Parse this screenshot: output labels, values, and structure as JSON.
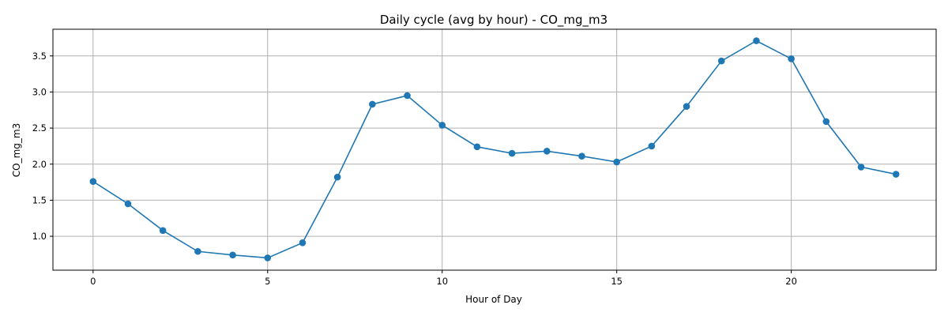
{
  "chart_data": {
    "type": "line",
    "title": "Daily cycle (avg by hour) - CO_mg_m3",
    "xlabel": "Hour of Day",
    "ylabel": "CO_mg_m3",
    "xlim": [
      -1.15,
      24.15
    ],
    "ylim": [
      0.53,
      3.87
    ],
    "xticks": [
      0,
      5,
      10,
      15,
      20
    ],
    "yticks": [
      1.0,
      1.5,
      2.0,
      2.5,
      3.0,
      3.5
    ],
    "grid": true,
    "color": "#1f77b4",
    "marker": "circle",
    "series": [
      {
        "x": [
          0,
          1,
          2,
          3,
          4,
          5,
          6,
          7,
          8,
          9,
          10,
          11,
          12,
          13,
          14,
          15,
          16,
          17,
          18,
          19,
          20,
          21,
          22,
          23
        ],
        "y": [
          1.76,
          1.45,
          1.08,
          0.79,
          0.74,
          0.7,
          0.91,
          1.82,
          2.83,
          2.95,
          2.54,
          2.24,
          2.15,
          2.18,
          2.11,
          2.03,
          2.25,
          2.8,
          3.43,
          3.71,
          3.46,
          2.59,
          1.96,
          1.86
        ]
      }
    ]
  }
}
